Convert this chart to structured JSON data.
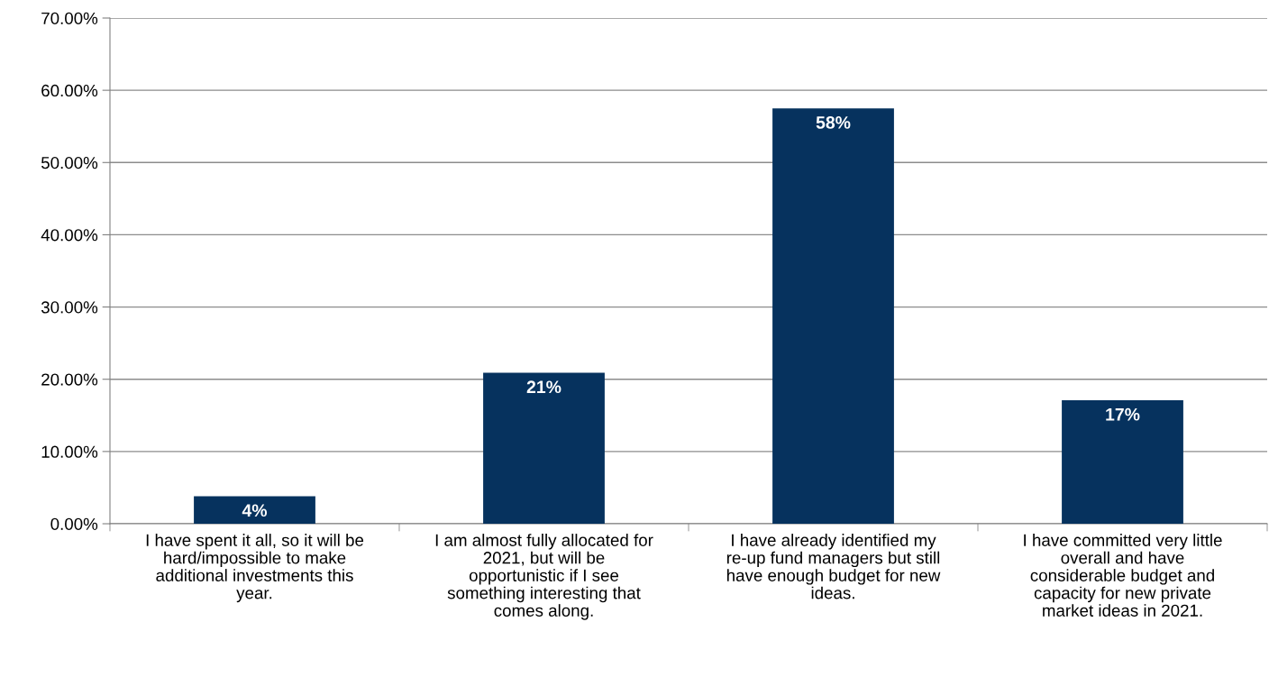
{
  "chart_data": {
    "type": "bar",
    "categories": [
      "I have spent it all, so it will be\nhard/impossible to make\nadditional investments this\nyear.",
      "I am almost fully allocated for\n2021, but will be\nopportunistic if I see\nsomething interesting that\ncomes along.",
      "I have already identified my\nre-up fund managers but still\nhave enough budget for new\nideas.",
      "I have committed very little\noverall and have\nconsiderable budget and\ncapacity for new private\nmarket ideas in 2021."
    ],
    "values": [
      3.8,
      20.9,
      57.5,
      17.1
    ],
    "value_labels": [
      "4%",
      "21%",
      "58%",
      "17%"
    ],
    "color": "#06325e",
    "ylim": [
      0,
      70
    ],
    "yticks": [
      {
        "value": 0,
        "label": "0.00%"
      },
      {
        "value": 10,
        "label": "10.00%"
      },
      {
        "value": 20,
        "label": "20.00%"
      },
      {
        "value": 30,
        "label": "30.00%"
      },
      {
        "value": 40,
        "label": "40.00%"
      },
      {
        "value": 50,
        "label": "50.00%"
      },
      {
        "value": 60,
        "label": "60.00%"
      },
      {
        "value": 70,
        "label": "70.00%"
      }
    ],
    "grid": "y",
    "legend": false
  }
}
